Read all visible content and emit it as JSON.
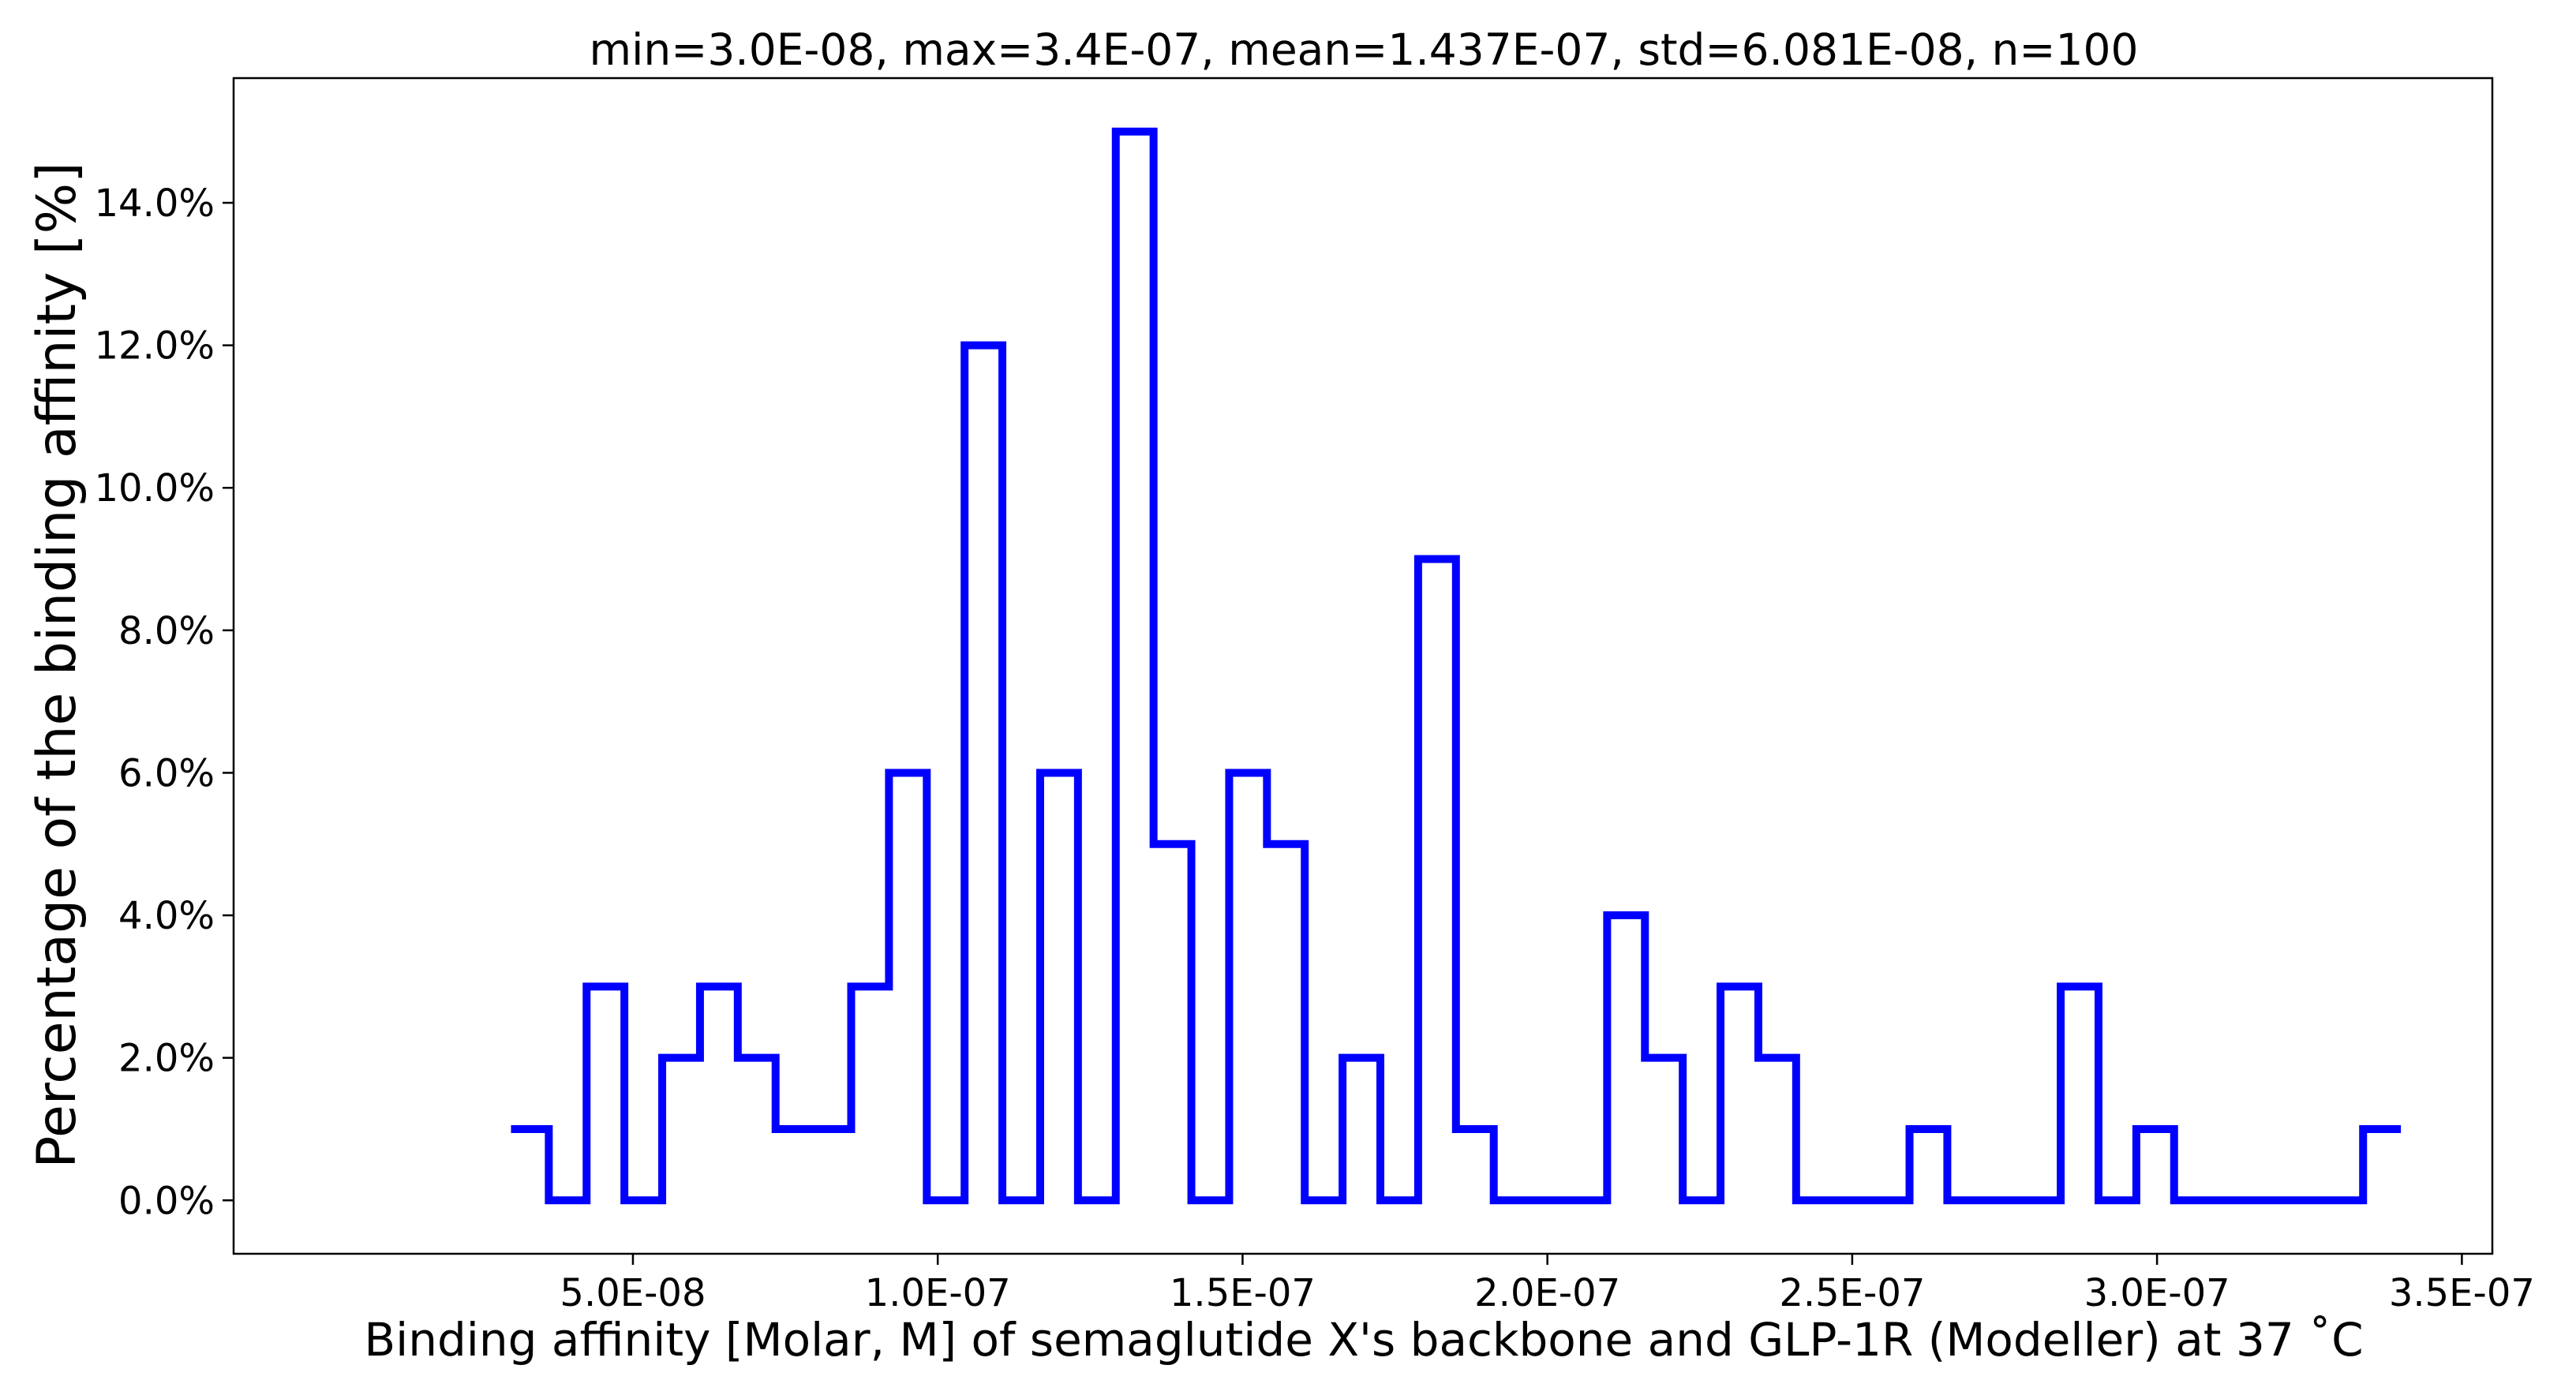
{
  "chart_data": {
    "type": "histogram",
    "title": "min=3.0E-08, max=3.4E-07, mean=1.437E-07, std=6.081E-08, n=100",
    "xlabel": "Binding affinity [Molar, M] of semaglutide X's backbone and GLP-1R (Modeller) at 37 ˚C",
    "ylabel": "Percentage of the binding affinity [%]",
    "xlim": [
      -1.55e-08,
      3.55e-07
    ],
    "ylim": [
      -0.75,
      15.75
    ],
    "x_ticks": [
      5e-08,
      1e-07,
      1.5e-07,
      2e-07,
      2.5e-07,
      3e-07,
      3.5e-07
    ],
    "x_tick_labels": [
      "5.0E-08",
      "1.0E-07",
      "1.5E-07",
      "2.0E-07",
      "2.5E-07",
      "3.0E-07",
      "3.5E-07"
    ],
    "y_ticks": [
      0,
      2,
      4,
      6,
      8,
      10,
      12,
      14
    ],
    "y_tick_labels": [
      "0.0%",
      "2.0%",
      "4.0%",
      "6.0%",
      "8.0%",
      "10.0%",
      "12.0%",
      "14.0%"
    ],
    "bin_start": 3e-08,
    "bin_width": 6.2e-09,
    "values": [
      1,
      0,
      3,
      0,
      2,
      3,
      2,
      1,
      1,
      3,
      6,
      0,
      12,
      0,
      6,
      0,
      15,
      5,
      0,
      6,
      5,
      0,
      2,
      0,
      9,
      1,
      0,
      0,
      0,
      4,
      2,
      0,
      3,
      2,
      0,
      0,
      0,
      1,
      0,
      0,
      0,
      3,
      0,
      1,
      0,
      0,
      0,
      0,
      0,
      1
    ],
    "grid": false,
    "line_color": "#0000ff",
    "frame_color": "#000000"
  }
}
